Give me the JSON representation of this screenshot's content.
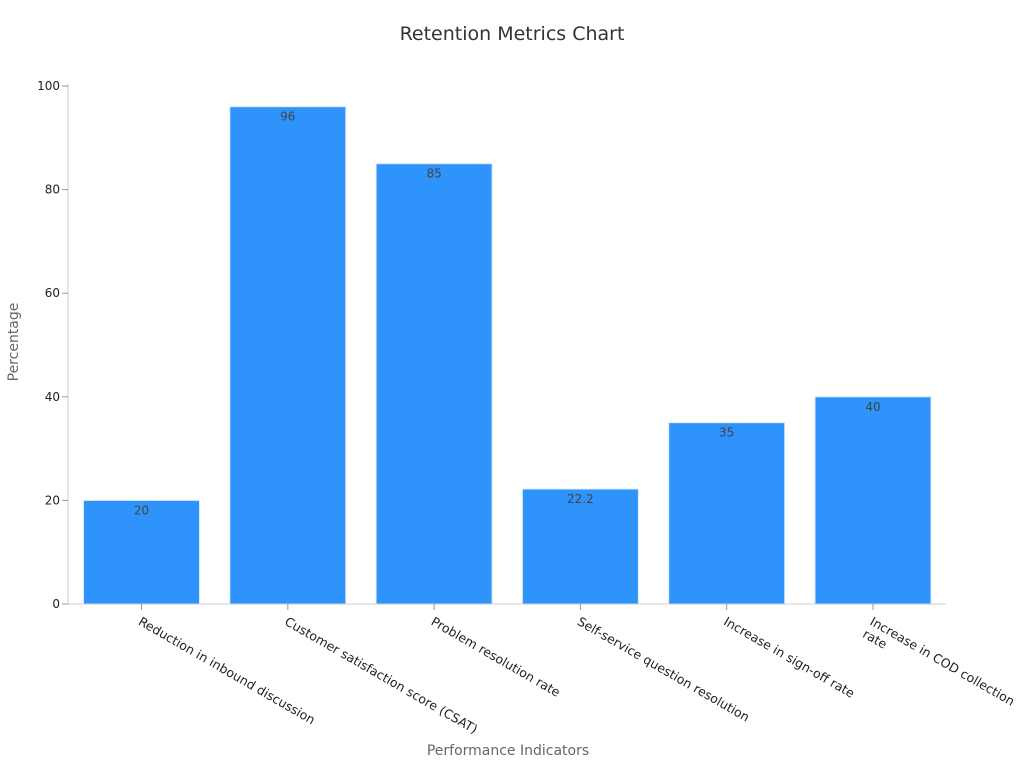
{
  "chart_data": {
    "type": "bar",
    "title": "Retention Metrics Chart",
    "xlabel": "Performance Indicators",
    "ylabel": "Percentage",
    "categories": [
      "Reduction in inbound discussion",
      "Customer satisfaction score (CSAT)",
      "Problem resolution rate",
      "Self-service question resolution",
      "Increase in sign-off rate",
      "Increase in COD collection rate"
    ],
    "category_label_lines": [
      [
        "Reduction in inbound discussion"
      ],
      [
        "Customer satisfaction score (CSAT)"
      ],
      [
        "Problem resolution rate"
      ],
      [
        "Self-service question resolution"
      ],
      [
        "Increase in sign-off rate"
      ],
      [
        "Increase in COD collection",
        "rate"
      ]
    ],
    "values": [
      20,
      96,
      85,
      22.2,
      35,
      40
    ],
    "value_labels": [
      "20",
      "96",
      "85",
      "22.2",
      "35",
      "40"
    ],
    "ylim": [
      0,
      100
    ],
    "yticks": [
      0,
      20,
      40,
      60,
      80,
      100
    ],
    "grid": false,
    "legend": "none",
    "bar_color": "#2e93fa"
  }
}
